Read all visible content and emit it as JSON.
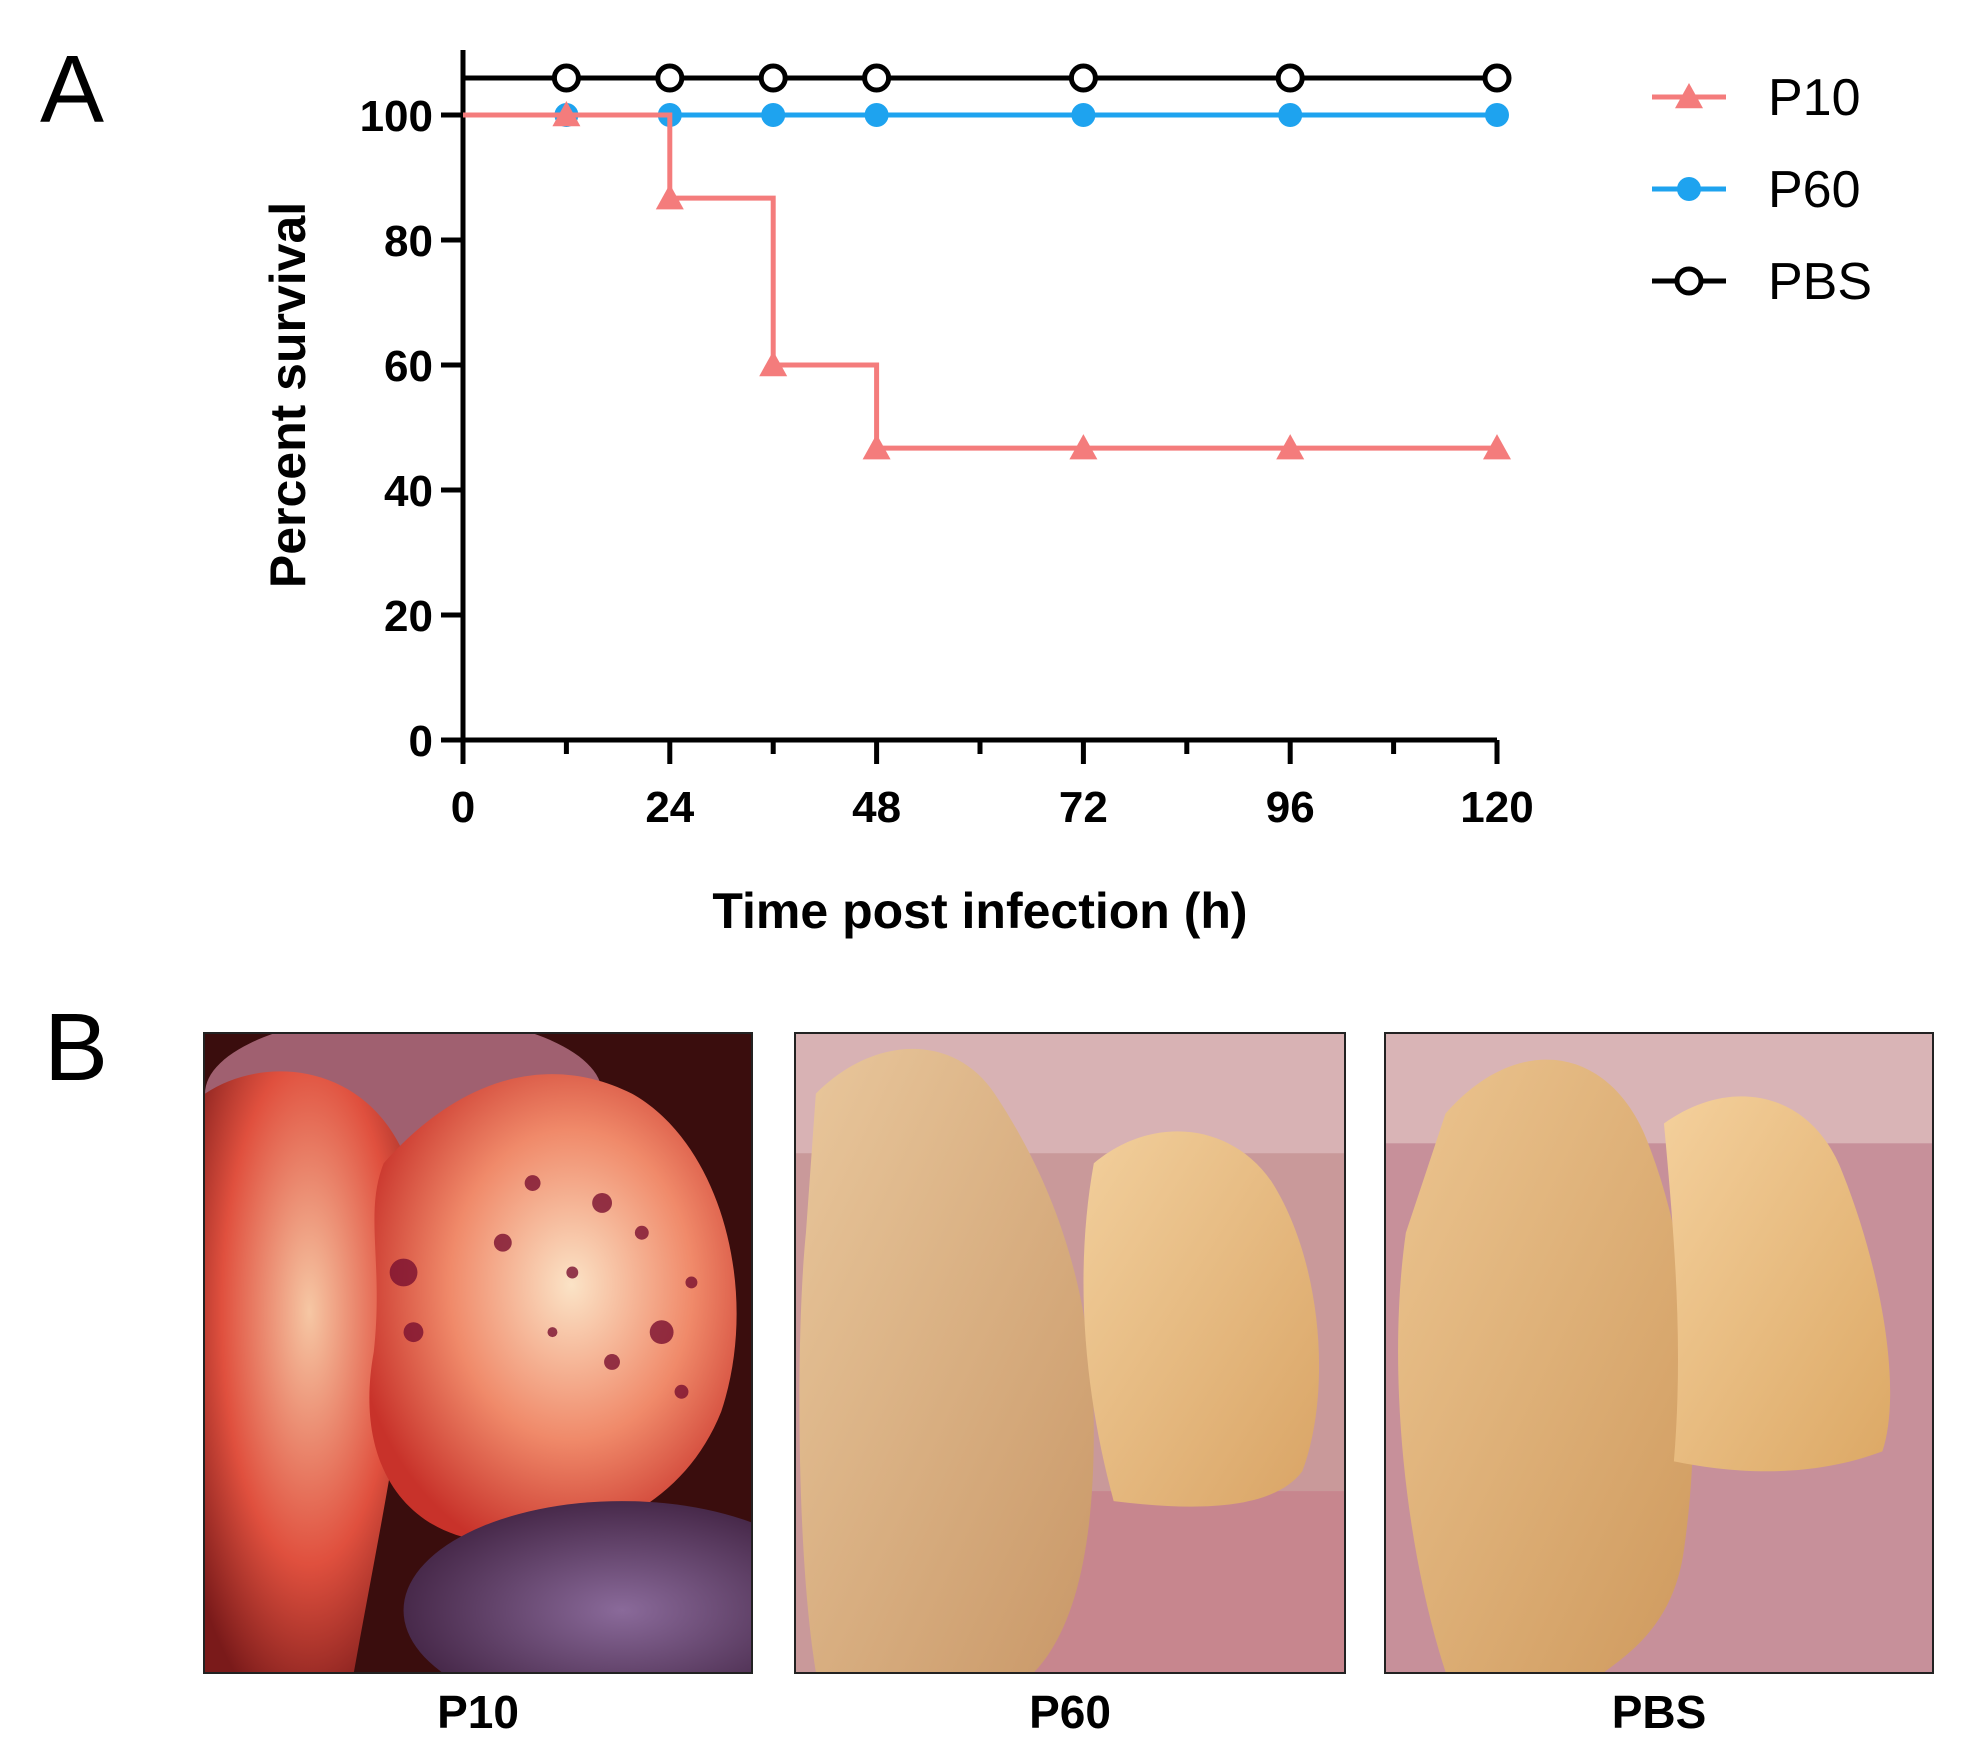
{
  "panels": {
    "a": "A",
    "b": "B"
  },
  "chart_data": {
    "type": "line",
    "title": "",
    "xlabel": "Time post infection (h)",
    "ylabel": "Percent survival",
    "xlim": [
      0,
      120
    ],
    "ylim": [
      0,
      100
    ],
    "xticks": [
      0,
      24,
      48,
      72,
      96,
      120
    ],
    "yticks": [
      0,
      20,
      40,
      60,
      80,
      100
    ],
    "grid": false,
    "legend_position": "top-right",
    "series": [
      {
        "name": "P10",
        "color": "#f47c7c",
        "marker": "triangle",
        "step": true,
        "x": [
          0,
          12,
          24,
          36,
          48,
          72,
          96,
          120
        ],
        "y": [
          100,
          100,
          86.7,
          60,
          46.7,
          46.7,
          46.7,
          46.7
        ],
        "marker_x": [
          12,
          24,
          36,
          48,
          72,
          96,
          120
        ]
      },
      {
        "name": "P60",
        "color": "#1ea3ef",
        "marker": "filled-circle",
        "step": true,
        "x": [
          0,
          12,
          24,
          36,
          48,
          72,
          96,
          120
        ],
        "y": [
          100,
          100,
          100,
          100,
          100,
          100,
          100,
          100
        ],
        "marker_x": [
          12,
          24,
          36,
          48,
          72,
          96,
          120
        ]
      },
      {
        "name": "PBS",
        "color": "#000000",
        "marker": "open-circle",
        "step": true,
        "x": [
          0,
          12,
          24,
          36,
          48,
          72,
          96,
          120
        ],
        "y": [
          100,
          100,
          100,
          100,
          100,
          100,
          100,
          100
        ],
        "marker_x": [
          12,
          24,
          36,
          48,
          72,
          96,
          120
        ]
      }
    ]
  },
  "photos": [
    {
      "label": "P10",
      "tone": "hemorrhagic-red"
    },
    {
      "label": "P60",
      "tone": "normal-tan"
    },
    {
      "label": "PBS",
      "tone": "normal-tan"
    }
  ]
}
